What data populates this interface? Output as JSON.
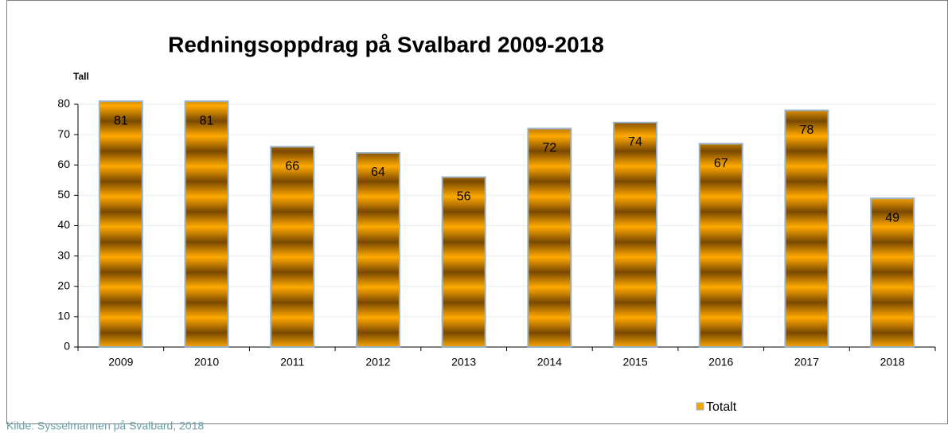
{
  "chart_data": {
    "type": "bar",
    "title": "Redningsoppdrag på Svalbard 2009-2018",
    "y_label": "Tall",
    "categories": [
      "2009",
      "2010",
      "2011",
      "2012",
      "2013",
      "2014",
      "2015",
      "2016",
      "2017",
      "2018"
    ],
    "series": [
      {
        "name": "Totalt",
        "color": "#f5a300",
        "values": [
          81,
          81,
          66,
          64,
          56,
          72,
          74,
          67,
          78,
          49
        ]
      }
    ],
    "ylim": [
      0,
      80
    ],
    "yticks": [
      0,
      10,
      20,
      30,
      40,
      50,
      60,
      70,
      80
    ],
    "grid": true,
    "legend": "bottom",
    "source": "Kilde: Sysselmannen på Svalbard, 2018"
  }
}
